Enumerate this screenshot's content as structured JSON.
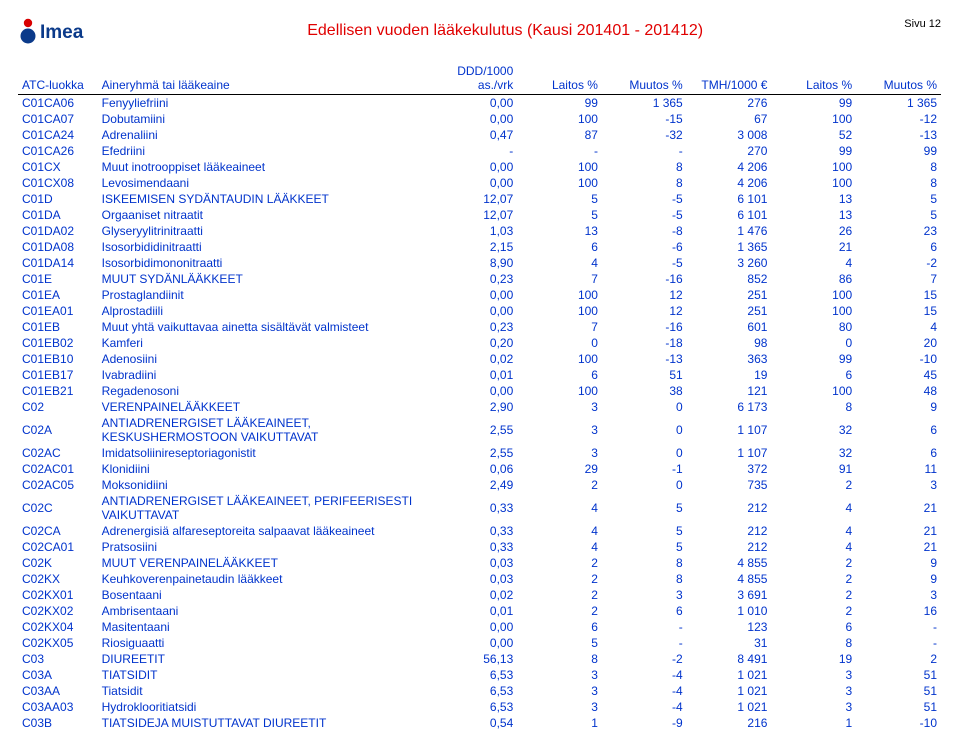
{
  "page_label": "Sivu  12",
  "title": "Edellisen vuoden lääkekulutus (Kausi 201401 - 201412)",
  "columns": {
    "code": "ATC-luokka",
    "name": "Aineryhmä tai lääkeaine",
    "ddd": "DDD/1000 as./vrk",
    "laitos1": "Laitos %",
    "muutos1": "Muutos %",
    "tmh": "TMH/1000 €",
    "laitos2": "Laitos %",
    "muutos2": "Muutos %"
  },
  "rows": [
    [
      "C01CA06",
      "Fenyyliefriini",
      "0,00",
      "99",
      "1 365",
      "276",
      "99",
      "1 365"
    ],
    [
      "C01CA07",
      "Dobutamiini",
      "0,00",
      "100",
      "-15",
      "67",
      "100",
      "-12"
    ],
    [
      "C01CA24",
      "Adrenaliini",
      "0,47",
      "87",
      "-32",
      "3 008",
      "52",
      "-13"
    ],
    [
      "C01CA26",
      "Efedriini",
      "-",
      "-",
      "-",
      "270",
      "99",
      "99"
    ],
    [
      "C01CX",
      "Muut inotrooppiset lääkeaineet",
      "0,00",
      "100",
      "8",
      "4 206",
      "100",
      "8"
    ],
    [
      "C01CX08",
      "Levosimendaani",
      "0,00",
      "100",
      "8",
      "4 206",
      "100",
      "8"
    ],
    [
      "C01D",
      "ISKEEMISEN SYDÄNTAUDIN LÄÄKKEET",
      "12,07",
      "5",
      "-5",
      "6 101",
      "13",
      "5"
    ],
    [
      "C01DA",
      "Orgaaniset nitraatit",
      "12,07",
      "5",
      "-5",
      "6 101",
      "13",
      "5"
    ],
    [
      "C01DA02",
      "Glyseryylitrinitraatti",
      "1,03",
      "13",
      "-8",
      "1 476",
      "26",
      "23"
    ],
    [
      "C01DA08",
      "Isosorbididinitraatti",
      "2,15",
      "6",
      "-6",
      "1 365",
      "21",
      "6"
    ],
    [
      "C01DA14",
      "Isosorbidimononitraatti",
      "8,90",
      "4",
      "-5",
      "3 260",
      "4",
      "-2"
    ],
    [
      "C01E",
      "MUUT SYDÄNLÄÄKKEET",
      "0,23",
      "7",
      "-16",
      "852",
      "86",
      "7"
    ],
    [
      "C01EA",
      "Prostaglandiinit",
      "0,00",
      "100",
      "12",
      "251",
      "100",
      "15"
    ],
    [
      "C01EA01",
      "Alprostadiili",
      "0,00",
      "100",
      "12",
      "251",
      "100",
      "15"
    ],
    [
      "C01EB",
      "Muut yhtä vaikuttavaa ainetta sisältävät valmisteet",
      "0,23",
      "7",
      "-16",
      "601",
      "80",
      "4"
    ],
    [
      "C01EB02",
      "Kamferi",
      "0,20",
      "0",
      "-18",
      "98",
      "0",
      "20"
    ],
    [
      "C01EB10",
      "Adenosiini",
      "0,02",
      "100",
      "-13",
      "363",
      "99",
      "-10"
    ],
    [
      "C01EB17",
      "Ivabradiini",
      "0,01",
      "6",
      "51",
      "19",
      "6",
      "45"
    ],
    [
      "C01EB21",
      "Regadenosoni",
      "0,00",
      "100",
      "38",
      "121",
      "100",
      "48"
    ],
    [
      "C02",
      "VERENPAINELÄÄKKEET",
      "2,90",
      "3",
      "0",
      "6 173",
      "8",
      "9"
    ],
    [
      "C02A",
      "ANTIADRENERGISET LÄÄKEAINEET, KESKUSHERMOSTOON VAIKUTTAVAT",
      "2,55",
      "3",
      "0",
      "1 107",
      "32",
      "6"
    ],
    [
      "C02AC",
      "Imidatsoliinireseptoriagonistit",
      "2,55",
      "3",
      "0",
      "1 107",
      "32",
      "6"
    ],
    [
      "C02AC01",
      "Klonidiini",
      "0,06",
      "29",
      "-1",
      "372",
      "91",
      "11"
    ],
    [
      "C02AC05",
      "Moksonidiini",
      "2,49",
      "2",
      "0",
      "735",
      "2",
      "3"
    ],
    [
      "C02C",
      "ANTIADRENERGISET LÄÄKEAINEET, PERIFEERISESTI VAIKUTTAVAT",
      "0,33",
      "4",
      "5",
      "212",
      "4",
      "21"
    ],
    [
      "C02CA",
      "Adrenergisiä alfareseptoreita salpaavat lääkeaineet",
      "0,33",
      "4",
      "5",
      "212",
      "4",
      "21"
    ],
    [
      "C02CA01",
      "Pratsosiini",
      "0,33",
      "4",
      "5",
      "212",
      "4",
      "21"
    ],
    [
      "C02K",
      "MUUT VERENPAINELÄÄKKEET",
      "0,03",
      "2",
      "8",
      "4 855",
      "2",
      "9"
    ],
    [
      "C02KX",
      "Keuhkoverenpainetaudin lääkkeet",
      "0,03",
      "2",
      "8",
      "4 855",
      "2",
      "9"
    ],
    [
      "C02KX01",
      "Bosentaani",
      "0,02",
      "2",
      "3",
      "3 691",
      "2",
      "3"
    ],
    [
      "C02KX02",
      "Ambrisentaani",
      "0,01",
      "2",
      "6",
      "1 010",
      "2",
      "16"
    ],
    [
      "C02KX04",
      "Masitentaani",
      "0,00",
      "6",
      "-",
      "123",
      "6",
      "-"
    ],
    [
      "C02KX05",
      "Riosiguaatti",
      "0,00",
      "5",
      "-",
      "31",
      "8",
      "-"
    ],
    [
      "C03",
      "DIUREETIT",
      "56,13",
      "8",
      "-2",
      "8 491",
      "19",
      "2"
    ],
    [
      "C03A",
      "TIATSIDIT",
      "6,53",
      "3",
      "-4",
      "1 021",
      "3",
      "51"
    ],
    [
      "C03AA",
      "Tiatsidit",
      "6,53",
      "3",
      "-4",
      "1 021",
      "3",
      "51"
    ],
    [
      "C03AA03",
      "Hydroklooritiatsidi",
      "6,53",
      "3",
      "-4",
      "1 021",
      "3",
      "51"
    ],
    [
      "C03B",
      "TIATSIDEJA MUISTUTTAVAT DIUREETIT",
      "0,54",
      "1",
      "-9",
      "216",
      "1",
      "-10"
    ]
  ]
}
